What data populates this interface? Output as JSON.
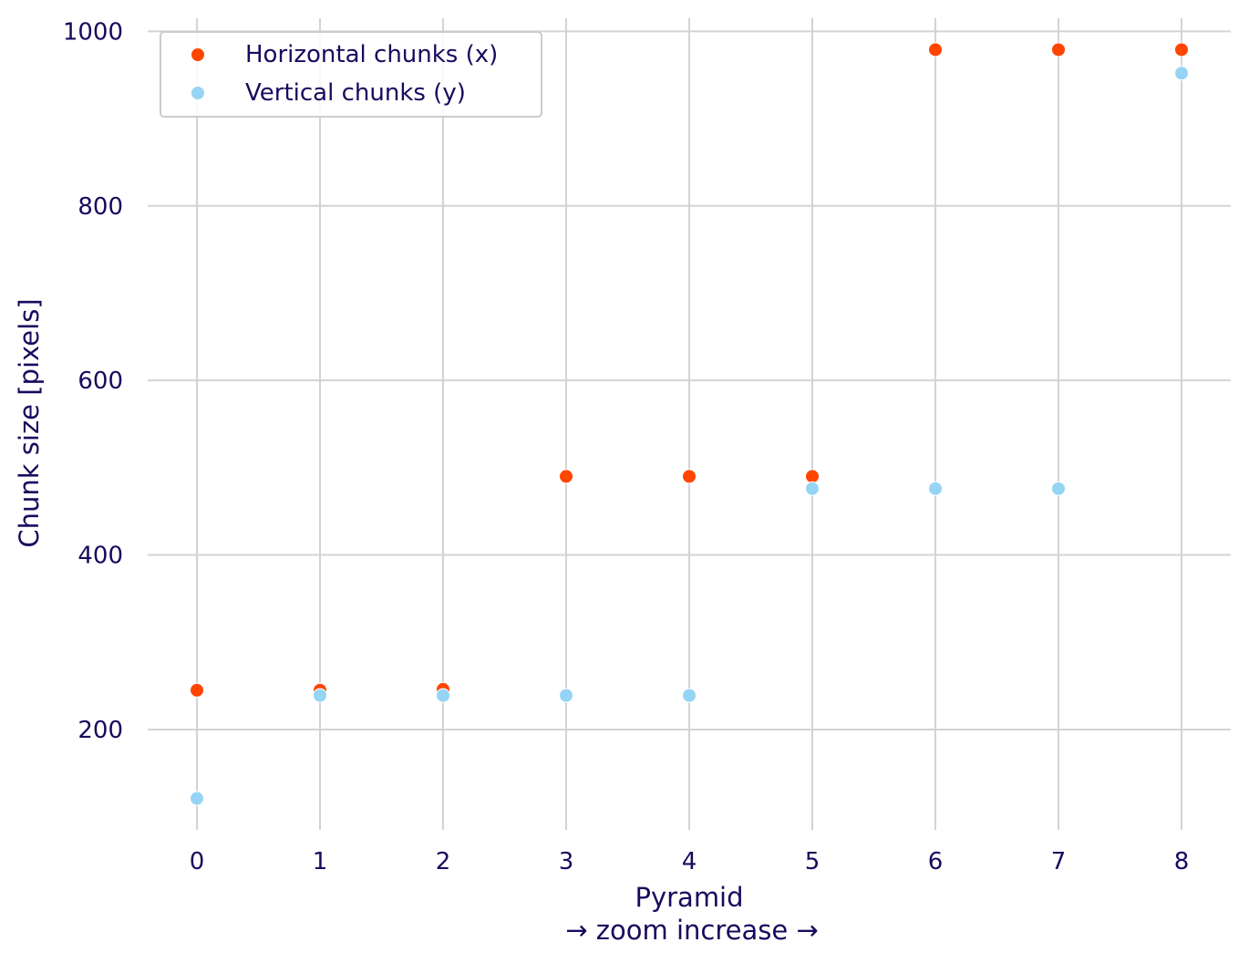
{
  "chart_data": {
    "type": "scatter",
    "title": "",
    "xlabel_lines": [
      "Pyramid",
      "→ zoom increase →"
    ],
    "ylabel": "Chunk size [pixels]",
    "x": [
      0,
      1,
      2,
      3,
      4,
      5,
      6,
      7,
      8
    ],
    "xticks": [
      "0",
      "1",
      "2",
      "3",
      "4",
      "5",
      "6",
      "7",
      "8"
    ],
    "yticks": [
      "200",
      "400",
      "600",
      "800",
      "1000"
    ],
    "xlim": [
      -0.4,
      8.4
    ],
    "ylim": [
      85,
      1015
    ],
    "grid": true,
    "legend_position": "top-left",
    "series": [
      {
        "name": "Horizontal chunks (x)",
        "color": "#ff4500",
        "values": [
          245,
          245,
          246,
          490,
          490,
          490,
          979,
          979,
          979
        ]
      },
      {
        "name": "Vertical chunks (y)",
        "color": "#96d4f5",
        "values": [
          121,
          239,
          239,
          239,
          239,
          476,
          476,
          476,
          952
        ]
      }
    ]
  }
}
